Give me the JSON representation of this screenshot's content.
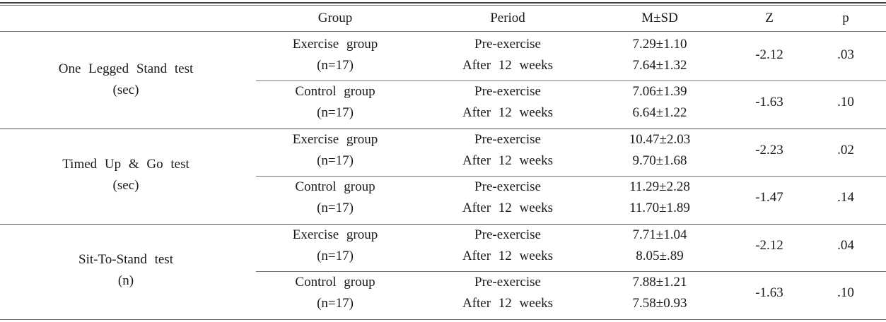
{
  "headers": {
    "group": "Group",
    "period": "Period",
    "msd": "M±SD",
    "z": "Z",
    "p": "p"
  },
  "sections": [
    {
      "test": "One Legged Stand test",
      "unit": "(sec)",
      "groups": [
        {
          "name": "Exercise group",
          "n": "(n=17)",
          "period_pre": "Pre-exercise",
          "period_post": "After 12 weeks",
          "msd_pre": "7.29±1.10",
          "msd_post": "7.64±1.32",
          "z": "-2.12",
          "p": ".03"
        },
        {
          "name": "Control group",
          "n": "(n=17)",
          "period_pre": "Pre-exercise",
          "period_post": "After 12 weeks",
          "msd_pre": "7.06±1.39",
          "msd_post": "6.64±1.22",
          "z": "-1.63",
          "p": ".10"
        }
      ]
    },
    {
      "test": "Timed Up & Go test",
      "unit": "(sec)",
      "groups": [
        {
          "name": "Exercise group",
          "n": "(n=17)",
          "period_pre": "Pre-exercise",
          "period_post": "After 12 weeks",
          "msd_pre": "10.47±2.03",
          "msd_post": "9.70±1.68",
          "z": "-2.23",
          "p": ".02"
        },
        {
          "name": "Control group",
          "n": "(n=17)",
          "period_pre": "Pre-exercise",
          "period_post": "After 12 weeks",
          "msd_pre": "11.29±2.28",
          "msd_post": "11.70±1.89",
          "z": "-1.47",
          "p": ".14"
        }
      ]
    },
    {
      "test": "Sit-To-Stand test",
      "unit": "(n)",
      "groups": [
        {
          "name": "Exercise group",
          "n": "(n=17)",
          "period_pre": "Pre-exercise",
          "period_post": "After 12 weeks",
          "msd_pre": "7.71±1.04",
          "msd_post": "8.05±.89",
          "z": "-2.12",
          "p": ".04"
        },
        {
          "name": "Control group",
          "n": "(n=17)",
          "period_pre": "Pre-exercise",
          "period_post": "After 12 weeks",
          "msd_pre": "7.88±1.21",
          "msd_post": "7.58±0.93",
          "z": "-1.63",
          "p": ".10"
        }
      ]
    }
  ]
}
